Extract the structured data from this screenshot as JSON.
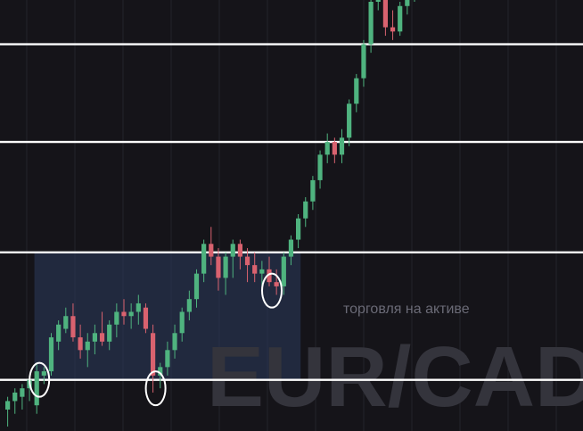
{
  "watermark": {
    "subtitle": "торговля на активе",
    "symbol": "EUR/CAD"
  },
  "colors": {
    "background": "#151419",
    "grid": "#24232a",
    "up": "#4fb37f",
    "down": "#d9626f",
    "level_line": "#ffffff",
    "zone_fill": "#2c3a5c"
  },
  "chart_data": {
    "type": "candlestick",
    "title": "",
    "ylim": [
      0,
      100
    ],
    "y_direction": "up",
    "grid": true,
    "levels": [
      90,
      67,
      41,
      11
    ],
    "range_zone": {
      "from_candle": 4,
      "to_candle": 40,
      "top": 41,
      "bottom": 11
    },
    "highlight_ellipses": [
      {
        "candle": 4,
        "center": 11
      },
      {
        "candle": 20,
        "center": 9
      },
      {
        "candle": 36,
        "center": 32
      }
    ],
    "candles": [
      {
        "o": 4,
        "h": 7,
        "l": 0,
        "c": 6
      },
      {
        "o": 6,
        "h": 9,
        "l": 3,
        "c": 8
      },
      {
        "o": 7,
        "h": 10,
        "l": 4,
        "c": 9
      },
      {
        "o": 9,
        "h": 12,
        "l": 6,
        "c": 11
      },
      {
        "o": 5,
        "h": 15,
        "l": 3,
        "c": 13
      },
      {
        "o": 12,
        "h": 14,
        "l": 10,
        "c": 13
      },
      {
        "o": 13,
        "h": 22,
        "l": 12,
        "c": 21
      },
      {
        "o": 20,
        "h": 25,
        "l": 18,
        "c": 24
      },
      {
        "o": 23,
        "h": 28,
        "l": 22,
        "c": 26
      },
      {
        "o": 26,
        "h": 29,
        "l": 20,
        "c": 21
      },
      {
        "o": 21,
        "h": 24,
        "l": 16,
        "c": 18
      },
      {
        "o": 18,
        "h": 22,
        "l": 14,
        "c": 20
      },
      {
        "o": 20,
        "h": 24,
        "l": 17,
        "c": 22
      },
      {
        "o": 22,
        "h": 27,
        "l": 19,
        "c": 20
      },
      {
        "o": 20,
        "h": 25,
        "l": 18,
        "c": 24
      },
      {
        "o": 24,
        "h": 29,
        "l": 21,
        "c": 27
      },
      {
        "o": 27,
        "h": 30,
        "l": 24,
        "c": 26
      },
      {
        "o": 26,
        "h": 29,
        "l": 23,
        "c": 27
      },
      {
        "o": 27,
        "h": 31,
        "l": 24,
        "c": 29
      },
      {
        "o": 28,
        "h": 29,
        "l": 22,
        "c": 23
      },
      {
        "o": 22,
        "h": 24,
        "l": 8,
        "c": 12
      },
      {
        "o": 12,
        "h": 15,
        "l": 9,
        "c": 14
      },
      {
        "o": 14,
        "h": 20,
        "l": 12,
        "c": 18
      },
      {
        "o": 18,
        "h": 24,
        "l": 16,
        "c": 22
      },
      {
        "o": 22,
        "h": 28,
        "l": 20,
        "c": 27
      },
      {
        "o": 27,
        "h": 32,
        "l": 25,
        "c": 30
      },
      {
        "o": 30,
        "h": 37,
        "l": 28,
        "c": 36
      },
      {
        "o": 36,
        "h": 44,
        "l": 34,
        "c": 43
      },
      {
        "o": 43,
        "h": 47,
        "l": 38,
        "c": 40
      },
      {
        "o": 40,
        "h": 42,
        "l": 32,
        "c": 35
      },
      {
        "o": 35,
        "h": 41,
        "l": 31,
        "c": 40
      },
      {
        "o": 40,
        "h": 44,
        "l": 35,
        "c": 43
      },
      {
        "o": 43,
        "h": 44,
        "l": 37,
        "c": 40
      },
      {
        "o": 40,
        "h": 42,
        "l": 34,
        "c": 38
      },
      {
        "o": 38,
        "h": 41,
        "l": 34,
        "c": 36
      },
      {
        "o": 36,
        "h": 39,
        "l": 33,
        "c": 37
      },
      {
        "o": 37,
        "h": 40,
        "l": 33,
        "c": 34
      },
      {
        "o": 34,
        "h": 37,
        "l": 31,
        "c": 33
      },
      {
        "o": 33,
        "h": 41,
        "l": 31,
        "c": 40
      },
      {
        "o": 40,
        "h": 45,
        "l": 38,
        "c": 44
      },
      {
        "o": 44,
        "h": 50,
        "l": 42,
        "c": 49
      },
      {
        "o": 49,
        "h": 54,
        "l": 47,
        "c": 53
      },
      {
        "o": 53,
        "h": 59,
        "l": 51,
        "c": 58
      },
      {
        "o": 58,
        "h": 65,
        "l": 56,
        "c": 64
      },
      {
        "o": 64,
        "h": 69,
        "l": 62,
        "c": 67
      },
      {
        "o": 67,
        "h": 68,
        "l": 62,
        "c": 64
      },
      {
        "o": 64,
        "h": 70,
        "l": 62,
        "c": 68
      },
      {
        "o": 68,
        "h": 77,
        "l": 66,
        "c": 76
      },
      {
        "o": 76,
        "h": 83,
        "l": 74,
        "c": 82
      },
      {
        "o": 82,
        "h": 91,
        "l": 80,
        "c": 90
      },
      {
        "o": 90,
        "h": 101,
        "l": 88,
        "c": 100
      },
      {
        "o": 100,
        "h": 104,
        "l": 98,
        "c": 102
      },
      {
        "o": 102,
        "h": 104,
        "l": 92,
        "c": 94
      },
      {
        "o": 94,
        "h": 98,
        "l": 91,
        "c": 93
      },
      {
        "o": 93,
        "h": 100,
        "l": 92,
        "c": 99
      },
      {
        "o": 99,
        "h": 103,
        "l": 97,
        "c": 102
      },
      {
        "o": 102,
        "h": 104,
        "l": 100,
        "c": 103
      }
    ]
  }
}
